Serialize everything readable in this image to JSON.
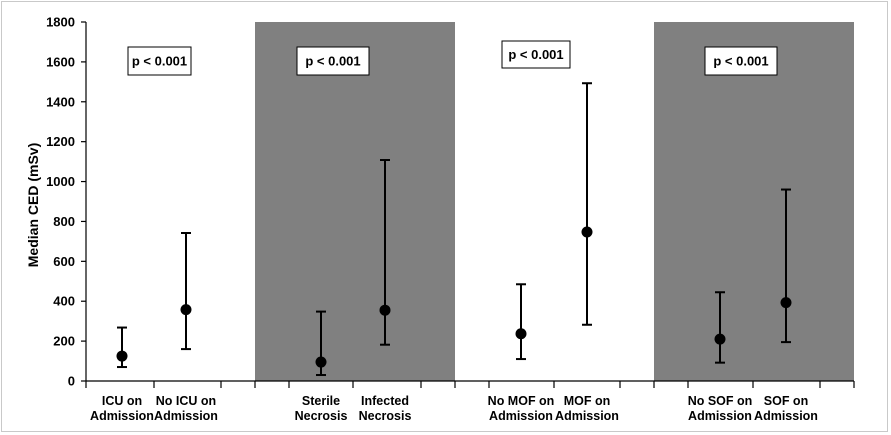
{
  "chart_data": {
    "type": "scatter",
    "ylabel": "Median CED (mSv)",
    "ylim": [
      0,
      1800
    ],
    "yticks": [
      "0",
      "200",
      "400",
      "600",
      "800",
      "1000",
      "1200",
      "1400",
      "1600",
      "1800"
    ],
    "grid": false,
    "panels": [
      {
        "background": "#ffffff",
        "p_value": "p < 0.001",
        "categories": [
          {
            "label": [
              "ICU on",
              "Admission"
            ],
            "median": 125,
            "low": 70,
            "high": 268
          },
          {
            "label": [
              "No ICU on",
              "Admission"
            ],
            "median": 358,
            "low": 160,
            "high": 742
          }
        ]
      },
      {
        "background": "#808080",
        "p_value": "p < 0.001",
        "categories": [
          {
            "label": [
              "Sterile",
              "Necrosis"
            ],
            "median": 95,
            "low": 30,
            "high": 348
          },
          {
            "label": [
              "Infected",
              "Necrosis"
            ],
            "median": 355,
            "low": 182,
            "high": 1108
          }
        ]
      },
      {
        "background": "#ffffff",
        "p_value": "p < 0.001",
        "categories": [
          {
            "label": [
              "No MOF on",
              "Admission"
            ],
            "median": 237,
            "low": 110,
            "high": 485
          },
          {
            "label": [
              "MOF on",
              "Admission"
            ],
            "median": 747,
            "low": 282,
            "high": 1493
          }
        ]
      },
      {
        "background": "#808080",
        "p_value": "p < 0.001",
        "categories": [
          {
            "label": [
              "No SOF on",
              "Admission"
            ],
            "median": 210,
            "low": 92,
            "high": 445
          },
          {
            "label": [
              "SOF on",
              "Admission"
            ],
            "median": 393,
            "low": 195,
            "high": 960
          }
        ]
      }
    ]
  }
}
